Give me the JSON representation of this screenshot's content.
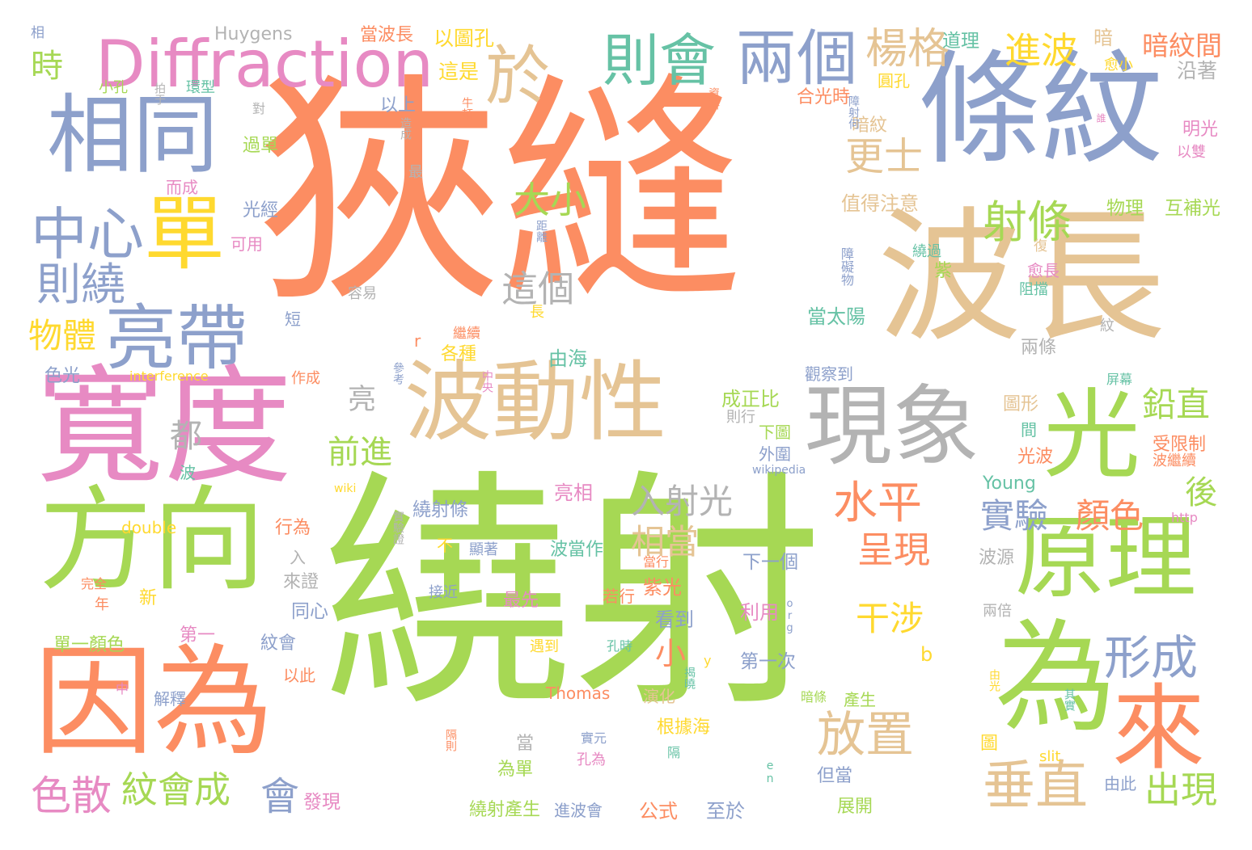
{
  "palette": {
    "orange": "#fc8d62",
    "green": "#a6d854",
    "blue": "#8da0cb",
    "pink": "#e78ac3",
    "tan": "#e5c494",
    "gray": "#b3b3b3",
    "yellow": "#ffd92f",
    "teal": "#66c2a5"
  },
  "words": [
    {
      "text": "狹縫",
      "color": "orange"
    },
    {
      "text": "繞射",
      "color": "green"
    },
    {
      "text": "條紋",
      "color": "blue"
    },
    {
      "text": "波長",
      "color": "tan"
    },
    {
      "text": "寬度",
      "color": "pink"
    },
    {
      "text": "波動性",
      "color": "tan"
    },
    {
      "text": "現象",
      "color": "gray"
    },
    {
      "text": "光",
      "color": "green"
    },
    {
      "text": "方向",
      "color": "green"
    },
    {
      "text": "因為",
      "color": "orange"
    },
    {
      "text": "原理",
      "color": "green"
    },
    {
      "text": "為",
      "color": "green"
    },
    {
      "text": "來",
      "color": "orange"
    },
    {
      "text": "相同",
      "color": "blue"
    },
    {
      "text": "Diffraction",
      "color": "pink"
    },
    {
      "text": "於",
      "color": "tan"
    },
    {
      "text": "則會",
      "color": "teal"
    },
    {
      "text": "兩個",
      "color": "blue"
    },
    {
      "text": "單",
      "color": "yellow"
    },
    {
      "text": "亮帶",
      "color": "blue"
    },
    {
      "text": "中心",
      "color": "blue"
    },
    {
      "text": "則繞",
      "color": "blue"
    },
    {
      "text": "物體",
      "color": "yellow"
    },
    {
      "text": "楊格",
      "color": "tan"
    },
    {
      "text": "進波",
      "color": "yellow"
    },
    {
      "text": "暗紋間",
      "color": "orange"
    },
    {
      "text": "更士",
      "color": "tan"
    },
    {
      "text": "射條",
      "color": "green"
    },
    {
      "text": "大小",
      "color": "green"
    },
    {
      "text": "這個",
      "color": "gray"
    },
    {
      "text": "水平",
      "color": "orange"
    },
    {
      "text": "入射光",
      "color": "gray"
    },
    {
      "text": "鉛直",
      "color": "green"
    },
    {
      "text": "實驗",
      "color": "blue"
    },
    {
      "text": "顏色",
      "color": "orange"
    },
    {
      "text": "形成",
      "color": "blue"
    },
    {
      "text": "垂直",
      "color": "tan"
    },
    {
      "text": "放置",
      "color": "tan"
    },
    {
      "text": "出現",
      "color": "green"
    },
    {
      "text": "呈現",
      "color": "orange"
    },
    {
      "text": "相當",
      "color": "tan"
    },
    {
      "text": "干涉",
      "color": "yellow"
    },
    {
      "text": "前進",
      "color": "green"
    },
    {
      "text": "紋會成",
      "color": "green"
    },
    {
      "text": "色散",
      "color": "pink"
    },
    {
      "text": "會",
      "color": "blue"
    },
    {
      "text": "都",
      "color": "gray"
    },
    {
      "text": "亮",
      "color": "gray"
    },
    {
      "text": "小",
      "color": "orange"
    },
    {
      "text": "後",
      "color": "green"
    },
    {
      "text": "時",
      "color": "green"
    },
    {
      "text": "Huygens",
      "color": "gray"
    },
    {
      "text": "當波長",
      "color": "orange"
    },
    {
      "text": "以圖孔",
      "color": "yellow"
    },
    {
      "text": "這是",
      "color": "yellow"
    },
    {
      "text": "道理",
      "color": "teal"
    },
    {
      "text": "暗",
      "color": "tan"
    },
    {
      "text": "沿著",
      "color": "gray"
    },
    {
      "text": "愈小",
      "color": "yellow"
    },
    {
      "text": "圓孔",
      "color": "yellow"
    },
    {
      "text": "合光時",
      "color": "orange"
    },
    {
      "text": "暗紋",
      "color": "tan"
    },
    {
      "text": "以上",
      "color": "blue"
    },
    {
      "text": "過單",
      "color": "green"
    },
    {
      "text": "光經",
      "color": "blue"
    },
    {
      "text": "可用",
      "color": "pink"
    },
    {
      "text": "而成",
      "color": "pink"
    },
    {
      "text": "小孔",
      "color": "green"
    },
    {
      "text": "環型",
      "color": "teal"
    },
    {
      "text": "拍于",
      "color": "gray"
    },
    {
      "text": "對",
      "color": "gray"
    },
    {
      "text": "造成",
      "color": "gray"
    },
    {
      "text": "牛頓",
      "color": "orange"
    },
    {
      "text": "資料",
      "color": "orange"
    },
    {
      "text": "障射何",
      "color": "blue"
    },
    {
      "text": "最",
      "color": "gray"
    },
    {
      "text": "值得注意",
      "color": "tan"
    },
    {
      "text": "物理",
      "color": "green"
    },
    {
      "text": "互補光",
      "color": "green"
    },
    {
      "text": "明光",
      "color": "pink"
    },
    {
      "text": "以雙",
      "color": "pink"
    },
    {
      "text": "相",
      "color": "blue"
    },
    {
      "text": "距離",
      "color": "blue"
    },
    {
      "text": "障礙物",
      "color": "blue"
    },
    {
      "text": "繞過",
      "color": "teal"
    },
    {
      "text": "紫",
      "color": "green"
    },
    {
      "text": "阻擋",
      "color": "teal"
    },
    {
      "text": "愈長",
      "color": "pink"
    },
    {
      "text": "復",
      "color": "tan"
    },
    {
      "text": "容易",
      "color": "gray"
    },
    {
      "text": "短",
      "color": "blue"
    },
    {
      "text": "長",
      "color": "yellow"
    },
    {
      "text": "當太陽",
      "color": "teal"
    },
    {
      "text": "繼續",
      "color": "orange"
    },
    {
      "text": "r",
      "color": "orange"
    },
    {
      "text": "各種",
      "color": "yellow"
    },
    {
      "text": "由海",
      "color": "teal"
    },
    {
      "text": "兩條",
      "color": "gray"
    },
    {
      "text": "紋",
      "color": "gray"
    },
    {
      "text": "參考",
      "color": "blue"
    },
    {
      "text": "中央",
      "color": "pink"
    },
    {
      "text": "色光",
      "color": "blue"
    },
    {
      "text": "interference",
      "color": "yellow"
    },
    {
      "text": "作成",
      "color": "orange"
    },
    {
      "text": "成正比",
      "color": "green"
    },
    {
      "text": "則行",
      "color": "gray"
    },
    {
      "text": "觀察到",
      "color": "blue"
    },
    {
      "text": "圖形",
      "color": "tan"
    },
    {
      "text": "屏幕",
      "color": "teal"
    },
    {
      "text": "下圖",
      "color": "green"
    },
    {
      "text": "外圍",
      "color": "blue"
    },
    {
      "text": "間",
      "color": "teal"
    },
    {
      "text": "受限制",
      "color": "orange"
    },
    {
      "text": "光波",
      "color": "orange"
    },
    {
      "text": "波繼續",
      "color": "orange"
    },
    {
      "text": "wikipedia",
      "color": "blue"
    },
    {
      "text": "wiki",
      "color": "yellow"
    },
    {
      "text": "波",
      "color": "teal"
    },
    {
      "text": "Young",
      "color": "teal"
    },
    {
      "text": "亮相",
      "color": "pink"
    },
    {
      "text": "繞射條",
      "color": "blue"
    },
    {
      "text": "實驗證",
      "color": "gray"
    },
    {
      "text": "double",
      "color": "yellow"
    },
    {
      "text": "行為",
      "color": "orange"
    },
    {
      "text": "入",
      "color": "gray"
    },
    {
      "text": "來證",
      "color": "gray"
    },
    {
      "text": "不",
      "color": "yellow"
    },
    {
      "text": "顯著",
      "color": "blue"
    },
    {
      "text": "波當作",
      "color": "teal"
    },
    {
      "text": "當行",
      "color": "orange"
    },
    {
      "text": "紫光",
      "color": "orange"
    },
    {
      "text": "下一個",
      "color": "blue"
    },
    {
      "text": "波源",
      "color": "gray"
    },
    {
      "text": "http",
      "color": "pink"
    },
    {
      "text": "完全",
      "color": "orange"
    },
    {
      "text": "年",
      "color": "orange"
    },
    {
      "text": "新",
      "color": "yellow"
    },
    {
      "text": "同心",
      "color": "blue"
    },
    {
      "text": "接近",
      "color": "blue"
    },
    {
      "text": "最先",
      "color": "pink"
    },
    {
      "text": "若行",
      "color": "orange"
    },
    {
      "text": "利用",
      "color": "pink"
    },
    {
      "text": "看到",
      "color": "blue"
    },
    {
      "text": "兩倍",
      "color": "gray"
    },
    {
      "text": "第一",
      "color": "pink"
    },
    {
      "text": "紋會",
      "color": "blue"
    },
    {
      "text": "單一顏色",
      "color": "green"
    },
    {
      "text": "以此",
      "color": "orange"
    },
    {
      "text": "遇到",
      "color": "yellow"
    },
    {
      "text": "孔時",
      "color": "teal"
    },
    {
      "text": "第一次",
      "color": "blue"
    },
    {
      "text": "b",
      "color": "yellow"
    },
    {
      "text": "中",
      "color": "pink"
    },
    {
      "text": "解釋",
      "color": "blue"
    },
    {
      "text": "Thomas",
      "color": "orange"
    },
    {
      "text": "演化",
      "color": "tan"
    },
    {
      "text": "產生",
      "color": "green"
    },
    {
      "text": "由光",
      "color": "yellow"
    },
    {
      "text": "根據海",
      "color": "yellow"
    },
    {
      "text": "隔則",
      "color": "orange"
    },
    {
      "text": "當",
      "color": "gray"
    },
    {
      "text": "實元",
      "color": "blue"
    },
    {
      "text": "孔為",
      "color": "pink"
    },
    {
      "text": "隔",
      "color": "teal"
    },
    {
      "text": "圖",
      "color": "yellow"
    },
    {
      "text": "slit",
      "color": "yellow"
    },
    {
      "text": "en",
      "color": "teal"
    },
    {
      "text": "為單",
      "color": "green"
    },
    {
      "text": "但當",
      "color": "blue"
    },
    {
      "text": "由此",
      "color": "blue"
    },
    {
      "text": "發現",
      "color": "pink"
    },
    {
      "text": "繞射產生",
      "color": "green"
    },
    {
      "text": "進波會",
      "color": "blue"
    },
    {
      "text": "公式",
      "color": "orange"
    },
    {
      "text": "至於",
      "color": "blue"
    },
    {
      "text": "展開",
      "color": "green"
    },
    {
      "text": "其實",
      "color": "teal"
    },
    {
      "text": "y",
      "color": "yellow"
    },
    {
      "text": "揭曉",
      "color": "teal"
    },
    {
      "text": "暗條",
      "color": "green"
    },
    {
      "text": "org",
      "color": "blue"
    },
    {
      "text": "誰",
      "color": "pink"
    }
  ]
}
